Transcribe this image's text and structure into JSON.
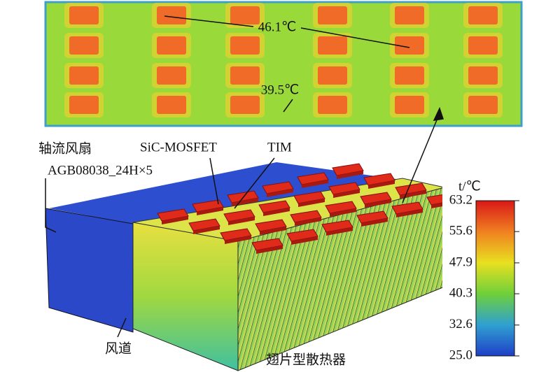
{
  "top_view": {
    "annotations": [
      {
        "label": "46.1℃"
      },
      {
        "label": "39.5℃"
      }
    ]
  },
  "labels": {
    "fan": "轴流风扇",
    "fan_model": "AGB08038_24H×5",
    "device": "SiC-MOSFET",
    "tim": "TIM",
    "duct": "风道",
    "heatsink": "翅片型散热器"
  },
  "colorbar": {
    "title": "t/℃",
    "lim": [
      25.0,
      63.2
    ],
    "ticks": [
      63.2,
      55.6,
      47.9,
      40.3,
      32.6,
      {
        "value": 25,
        "label": "25.0"
      }
    ]
  }
}
